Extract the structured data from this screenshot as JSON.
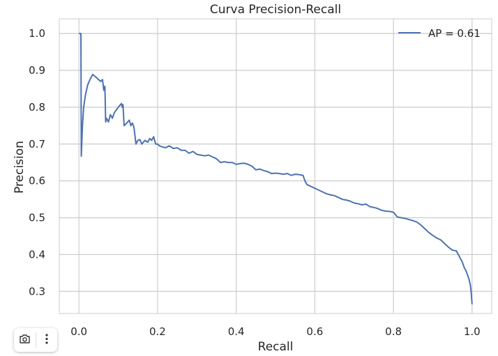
{
  "chart_data": {
    "type": "line",
    "title": "Curva Precision-Recall",
    "xlabel": "Recall",
    "ylabel": "Precision",
    "xlim": [
      -0.05,
      1.05
    ],
    "ylim": [
      0.24,
      1.04
    ],
    "xticks": [
      "0.0",
      "0.2",
      "0.4",
      "0.6",
      "0.8",
      "1.0"
    ],
    "xtick_values": [
      0.0,
      0.2,
      0.4,
      0.6,
      0.8,
      1.0
    ],
    "yticks": [
      "0.3",
      "0.4",
      "0.5",
      "0.6",
      "0.7",
      "0.8",
      "0.9",
      "1.0"
    ],
    "ytick_values": [
      0.3,
      0.4,
      0.5,
      0.6,
      0.7,
      0.8,
      0.9,
      1.0
    ],
    "grid": true,
    "legend_position": "top-right",
    "series": [
      {
        "name": "AP = 0.61",
        "color": "#4c72b0",
        "x": [
          0.0,
          0.005,
          0.006,
          0.009,
          0.012,
          0.016,
          0.022,
          0.028,
          0.035,
          0.045,
          0.055,
          0.06,
          0.062,
          0.063,
          0.065,
          0.066,
          0.068,
          0.07,
          0.075,
          0.08,
          0.085,
          0.09,
          0.1,
          0.108,
          0.11,
          0.112,
          0.115,
          0.12,
          0.128,
          0.132,
          0.136,
          0.14,
          0.145,
          0.15,
          0.155,
          0.16,
          0.168,
          0.175,
          0.18,
          0.185,
          0.19,
          0.195,
          0.2,
          0.205,
          0.21,
          0.22,
          0.23,
          0.24,
          0.25,
          0.26,
          0.27,
          0.28,
          0.29,
          0.3,
          0.31,
          0.32,
          0.33,
          0.34,
          0.35,
          0.36,
          0.37,
          0.38,
          0.39,
          0.4,
          0.41,
          0.42,
          0.43,
          0.44,
          0.45,
          0.46,
          0.47,
          0.48,
          0.49,
          0.5,
          0.51,
          0.52,
          0.53,
          0.54,
          0.55,
          0.56,
          0.57,
          0.575,
          0.58,
          0.59,
          0.6,
          0.61,
          0.62,
          0.63,
          0.64,
          0.65,
          0.66,
          0.67,
          0.68,
          0.69,
          0.7,
          0.71,
          0.72,
          0.73,
          0.74,
          0.75,
          0.76,
          0.77,
          0.78,
          0.79,
          0.8,
          0.81,
          0.82,
          0.83,
          0.84,
          0.85,
          0.86,
          0.87,
          0.88,
          0.89,
          0.9,
          0.91,
          0.92,
          0.93,
          0.94,
          0.95,
          0.96,
          0.965,
          0.97,
          0.975,
          0.98,
          0.985,
          0.99,
          0.993,
          0.996,
          0.998,
          1.0
        ],
        "y": [
          1.0,
          1.0,
          0.667,
          0.75,
          0.8,
          0.83,
          0.86,
          0.875,
          0.889,
          0.88,
          0.87,
          0.875,
          0.857,
          0.846,
          0.85,
          0.857,
          0.76,
          0.77,
          0.76,
          0.78,
          0.77,
          0.785,
          0.8,
          0.81,
          0.8,
          0.807,
          0.75,
          0.755,
          0.765,
          0.75,
          0.757,
          0.745,
          0.7,
          0.71,
          0.712,
          0.7,
          0.71,
          0.705,
          0.715,
          0.71,
          0.72,
          0.7,
          0.7,
          0.695,
          0.693,
          0.69,
          0.695,
          0.688,
          0.69,
          0.683,
          0.683,
          0.675,
          0.68,
          0.672,
          0.67,
          0.668,
          0.67,
          0.665,
          0.66,
          0.65,
          0.652,
          0.65,
          0.65,
          0.645,
          0.647,
          0.648,
          0.645,
          0.64,
          0.63,
          0.632,
          0.628,
          0.625,
          0.62,
          0.621,
          0.62,
          0.618,
          0.62,
          0.615,
          0.618,
          0.617,
          0.615,
          0.6,
          0.59,
          0.585,
          0.58,
          0.575,
          0.57,
          0.565,
          0.562,
          0.56,
          0.555,
          0.55,
          0.548,
          0.545,
          0.54,
          0.538,
          0.535,
          0.537,
          0.53,
          0.528,
          0.525,
          0.52,
          0.518,
          0.517,
          0.515,
          0.502,
          0.5,
          0.498,
          0.495,
          0.492,
          0.488,
          0.48,
          0.47,
          0.46,
          0.452,
          0.445,
          0.44,
          0.43,
          0.42,
          0.412,
          0.41,
          0.4,
          0.39,
          0.38,
          0.365,
          0.355,
          0.34,
          0.33,
          0.315,
          0.295,
          0.265
        ]
      }
    ]
  },
  "toolbar": {
    "camera_icon": "camera-icon",
    "more_icon": "more-vert-icon"
  }
}
